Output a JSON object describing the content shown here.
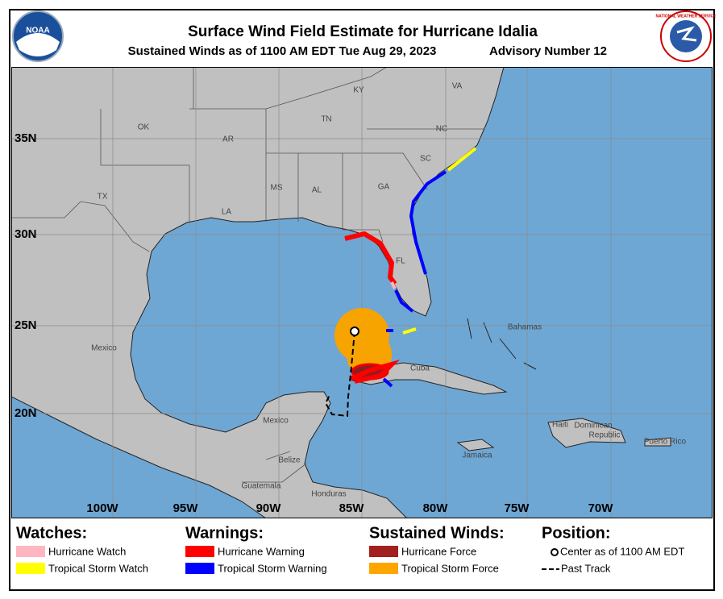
{
  "header": {
    "title": "Surface Wind Field Estimate for Hurricane Idalia",
    "subtitle": "Sustained Winds as of 1100 AM EDT Tue Aug 29, 2023",
    "advisory": "Advisory Number 12",
    "noaa_logo": "NOAA",
    "nws_logo": "NATIONAL WEATHER SERVICE"
  },
  "map": {
    "lat_labels": [
      "35N",
      "30N",
      "25N",
      "20N"
    ],
    "lon_labels": [
      "100W",
      "95W",
      "90W",
      "85W",
      "80W",
      "75W",
      "70W"
    ],
    "places": [
      "KY",
      "VA",
      "TN",
      "NC",
      "OK",
      "AR",
      "SC",
      "TX",
      "MS",
      "AL",
      "GA",
      "LA",
      "FL",
      "Mexico",
      "Bahamas",
      "Cuba",
      "Haiti",
      "Dominican",
      "Republic",
      "Puerto Rico",
      "Jamaica",
      "Mexico",
      "Belize",
      "Guatemala",
      "Honduras"
    ]
  },
  "legend": {
    "watches": {
      "title": "Watches:",
      "items": [
        "Hurricane Watch",
        "Tropical Storm Watch"
      ]
    },
    "warnings": {
      "title": "Warnings:",
      "items": [
        "Hurricane Warning",
        "Tropical Storm Warning"
      ]
    },
    "winds": {
      "title": "Sustained Winds:",
      "items": [
        "Hurricane Force",
        "Tropical Storm Force"
      ]
    },
    "position": {
      "title": "Position:",
      "items": [
        "Center as of 1100 AM EDT",
        "Past Track"
      ]
    }
  }
}
